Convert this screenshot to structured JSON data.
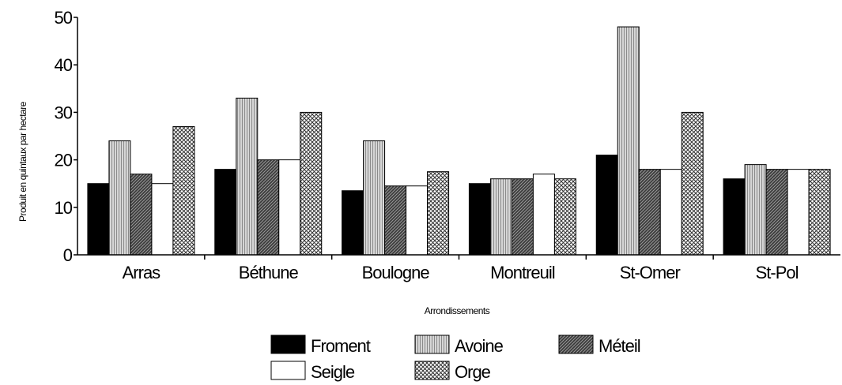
{
  "chart_data": {
    "type": "bar",
    "title": "",
    "xlabel": "Arrondissements",
    "ylabel": "Produit en quintaux par hectare",
    "ylim": [
      0,
      50
    ],
    "yticks": [
      0,
      10,
      20,
      30,
      40,
      50
    ],
    "grid": false,
    "legend_position": "bottom",
    "categories": [
      "Arras",
      "Béthune",
      "Boulogne",
      "Montreuil",
      "St-Omer",
      "St-Pol"
    ],
    "series": [
      {
        "name": "Froment",
        "pattern": "solid-black",
        "values": [
          15,
          18,
          13.5,
          15,
          21,
          16
        ]
      },
      {
        "name": "Avoine",
        "pattern": "vertical-lines",
        "values": [
          24,
          33,
          24,
          16,
          48,
          19
        ]
      },
      {
        "name": "Méteil",
        "pattern": "diagonal-dark",
        "values": [
          17,
          20,
          14.5,
          16,
          18,
          18
        ]
      },
      {
        "name": "Seigle",
        "pattern": "white",
        "values": [
          15,
          20,
          14.5,
          17,
          18,
          18
        ]
      },
      {
        "name": "Orge",
        "pattern": "crosshatch",
        "values": [
          27,
          30,
          17.5,
          16,
          30,
          18
        ]
      }
    ]
  }
}
